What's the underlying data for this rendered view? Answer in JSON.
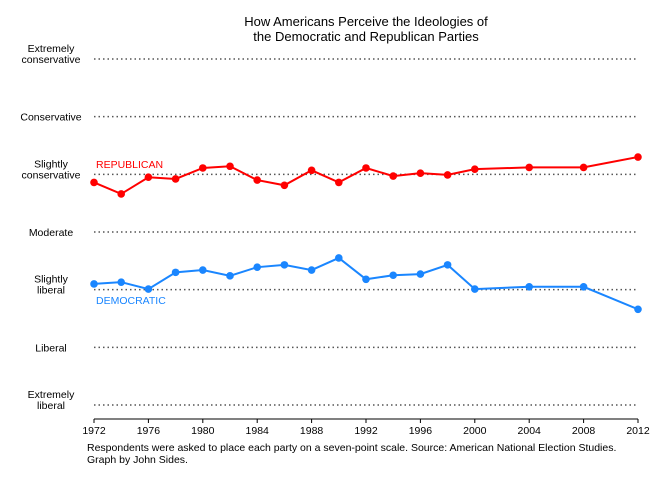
{
  "chart_data": {
    "type": "line",
    "title": "How Americans Perceive the Ideologies of the Democratic and Republican Parties",
    "title_lines": [
      "How Americans Perceive the Ideologies of",
      "the Democratic and Republican Parties"
    ],
    "xlabel": "",
    "ylabel": "",
    "xlim": [
      1972,
      2012
    ],
    "ylim": [
      1,
      7
    ],
    "x_ticks": [
      "1972",
      "1976",
      "1980",
      "1984",
      "1988",
      "1992",
      "1996",
      "2000",
      "2004",
      "2008",
      "2012"
    ],
    "y_ticks": [
      {
        "value": 7,
        "lines": [
          "Extremely",
          "conservative"
        ]
      },
      {
        "value": 6,
        "lines": [
          "Conservative"
        ]
      },
      {
        "value": 5,
        "lines": [
          "Slightly",
          "conservative"
        ]
      },
      {
        "value": 4,
        "lines": [
          "Moderate"
        ]
      },
      {
        "value": 3,
        "lines": [
          "Slightly",
          "liberal"
        ]
      },
      {
        "value": 2,
        "lines": [
          "Liberal"
        ]
      },
      {
        "value": 1,
        "lines": [
          "Extremely",
          "liberal"
        ]
      }
    ],
    "grid": "horizontal dotted",
    "x": [
      1972,
      1974,
      1976,
      1978,
      1980,
      1982,
      1984,
      1986,
      1988,
      1990,
      1992,
      1994,
      1996,
      1998,
      2000,
      2004,
      2008,
      2012
    ],
    "series": [
      {
        "name": "REPUBLICAN",
        "color": "#ff0000",
        "values": [
          4.86,
          4.66,
          4.95,
          4.92,
          5.11,
          5.14,
          4.9,
          4.81,
          5.07,
          4.86,
          5.11,
          4.97,
          5.02,
          4.99,
          5.09,
          5.12,
          5.12,
          5.3
        ]
      },
      {
        "name": "DEMOCRATIC",
        "color": "#1a86ff",
        "values": [
          3.1,
          3.13,
          3.01,
          3.3,
          3.34,
          3.24,
          3.39,
          3.43,
          3.34,
          3.55,
          3.18,
          3.25,
          3.27,
          3.43,
          3.01,
          3.05,
          3.05,
          2.66
        ]
      }
    ],
    "caption_lines": [
      "Respondents were asked to place each party on a seven-point scale. Source: American National Election Studies.",
      "Graph by John Sides."
    ]
  }
}
